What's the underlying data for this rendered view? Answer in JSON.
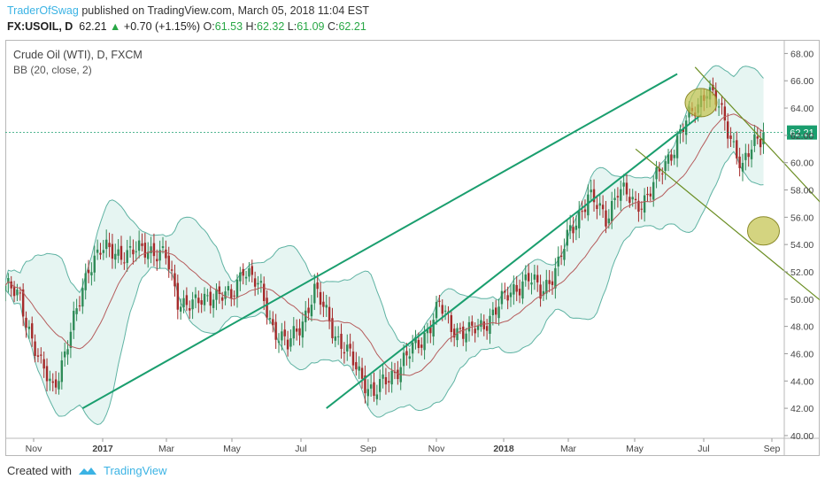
{
  "header": {
    "author": "TraderOfSwag",
    "published_text": "published on TradingView.com, March 05, 2018 11:04 EST",
    "symbol": "FX:USOIL, D",
    "price": "62.21",
    "change": "+0.70 (+1.15%)",
    "open_label": "O:",
    "open": "61.53",
    "high_label": "H:",
    "high": "62.32",
    "low_label": "L:",
    "low": "61.09",
    "close_label": "C:",
    "close": "62.21"
  },
  "chart_meta": {
    "title": "Crude Oil (WTI), D, FXCM",
    "indicator": "BB (20, close, 2)",
    "last_price_label": "62.21"
  },
  "footer": {
    "created_with": "Created with",
    "brand": "TradingView"
  },
  "colors": {
    "up": "#2e8b57",
    "down": "#a52a2a",
    "band_fill": "#e6f5f2",
    "band_line": "#5fb3a3",
    "basis": "#b55c5c",
    "channel": "#1a9e6e",
    "projection": "#6b8e23",
    "marker": "#c2c24a"
  },
  "chart_data": {
    "type": "candlestick",
    "title": "Crude Oil (WTI), D, FXCM",
    "x_ticks": [
      "Nov",
      "2017",
      "Mar",
      "May",
      "Jul",
      "Sep",
      "Nov",
      "2018",
      "Mar",
      "May",
      "Jul",
      "Sep"
    ],
    "y_ticks": [
      "40.00",
      "42.00",
      "44.00",
      "46.00",
      "48.00",
      "50.00",
      "52.00",
      "54.00",
      "56.00",
      "58.00",
      "60.00",
      "62.00",
      "64.00",
      "66.00",
      "68.00"
    ],
    "ylim": [
      39.8,
      69
    ],
    "last_price": 62.21,
    "close_series": [
      [
        0,
        51.0
      ],
      [
        5,
        50.0
      ],
      [
        12,
        45.0
      ],
      [
        16,
        43.5
      ],
      [
        20,
        46.0
      ],
      [
        24,
        49.0
      ],
      [
        28,
        52.5
      ],
      [
        32,
        53.5
      ],
      [
        36,
        53.5
      ],
      [
        42,
        53.3
      ],
      [
        48,
        53.8
      ],
      [
        54,
        53.0
      ],
      [
        58,
        50.0
      ],
      [
        64,
        49.5
      ],
      [
        70,
        50.5
      ],
      [
        76,
        50.0
      ],
      [
        80,
        52.5
      ],
      [
        86,
        50.5
      ],
      [
        90,
        48.0
      ],
      [
        95,
        46.5
      ],
      [
        100,
        48.5
      ],
      [
        104,
        50.5
      ],
      [
        108,
        49.0
      ],
      [
        112,
        47.0
      ],
      [
        118,
        45.0
      ],
      [
        124,
        43.0
      ],
      [
        128,
        44.0
      ],
      [
        134,
        45.5
      ],
      [
        140,
        47.0
      ],
      [
        146,
        49.5
      ],
      [
        150,
        48.0
      ],
      [
        156,
        47.5
      ],
      [
        160,
        48.0
      ],
      [
        166,
        49.5
      ],
      [
        172,
        51.0
      ],
      [
        176,
        51.5
      ],
      [
        180,
        50.5
      ],
      [
        186,
        52.5
      ],
      [
        190,
        55.0
      ],
      [
        196,
        57.5
      ],
      [
        202,
        56.0
      ],
      [
        206,
        58.0
      ],
      [
        212,
        57.0
      ],
      [
        216,
        57.5
      ],
      [
        222,
        60.0
      ],
      [
        228,
        62.5
      ],
      [
        232,
        64.0
      ],
      [
        236,
        65.5
      ],
      [
        240,
        64.0
      ],
      [
        244,
        62.0
      ],
      [
        248,
        59.5
      ],
      [
        252,
        61.5
      ],
      [
        255,
        62.21
      ]
    ],
    "annotations": {
      "upper_channel": [
        [
          26,
          42.0
        ],
        [
          226,
          66.5
        ]
      ],
      "lower_channel": [
        [
          108,
          42.0
        ],
        [
          234,
          63.5
        ]
      ],
      "projection_upper": [
        [
          232,
          67.0
        ],
        [
          300,
          51.0
        ]
      ],
      "projection_lower": [
        [
          212,
          61.0
        ],
        [
          296,
          46.0
        ]
      ],
      "markers": [
        [
          234,
          64.4
        ],
        [
          255,
          55.0
        ]
      ]
    }
  }
}
